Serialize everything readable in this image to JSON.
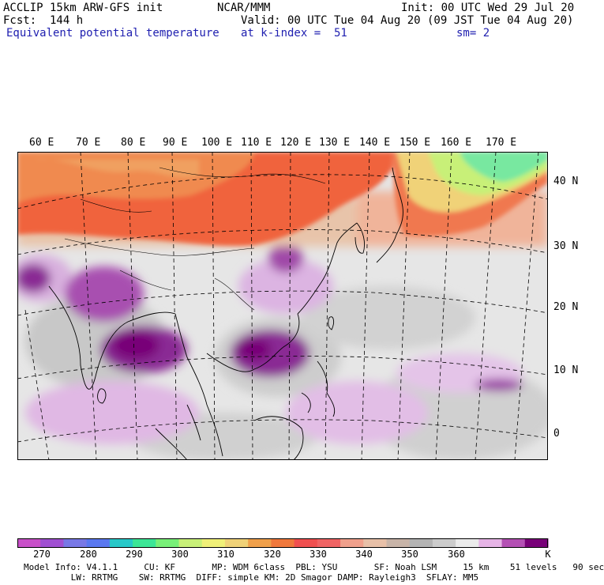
{
  "header": {
    "model": "ACCLIP 15km ARW-GFS init",
    "org": "NCAR/MMM",
    "init": "Init: 00 UTC Wed 29 Jul 20",
    "fcst": "Fcst:  144 h",
    "valid": "Valid: 00 UTC Tue 04 Aug 20 (09 JST Tue 04 Aug 20)",
    "field": "Equivalent potential temperature",
    "level": "at k-index =  51",
    "smooth": "sm= 2"
  },
  "lon_labels": [
    "60 E",
    "70 E",
    "80 E",
    "90 E",
    "100 E",
    "110 E",
    "120 E",
    "130 E",
    "140 E",
    "150 E",
    "160 E",
    "170 E"
  ],
  "lat_labels": [
    "40 N",
    "30 N",
    "20 N",
    "10 N",
    "0"
  ],
  "colorbar": {
    "colors": [
      "#c850c8",
      "#a050d2",
      "#7878e6",
      "#5a78f0",
      "#28c8c8",
      "#3ce696",
      "#78f078",
      "#c8f078",
      "#f0f078",
      "#f0d278",
      "#f0a04b",
      "#f0783c",
      "#f05050",
      "#f06464",
      "#f0a08c",
      "#e8c0a8",
      "#c8b4a8",
      "#b4b4b4",
      "#cccccc",
      "#ebebeb",
      "#e6b4e6",
      "#b450b4",
      "#780078"
    ],
    "ticks": [
      "270",
      "280",
      "290",
      "300",
      "310",
      "320",
      "330",
      "340",
      "350",
      "360"
    ],
    "units": "K"
  },
  "footer": {
    "line1": "Model Info: V4.1.1     CU: KF       MP: WDM 6class  PBL: YSU       SF: Noah LSM     15 km    51 levels   90 sec",
    "line2": "         LW: RRTMG    SW: RRTMG  DIFF: simple KM: 2D Smagor DAMP: Rayleigh3  SFLAY: MM5"
  }
}
